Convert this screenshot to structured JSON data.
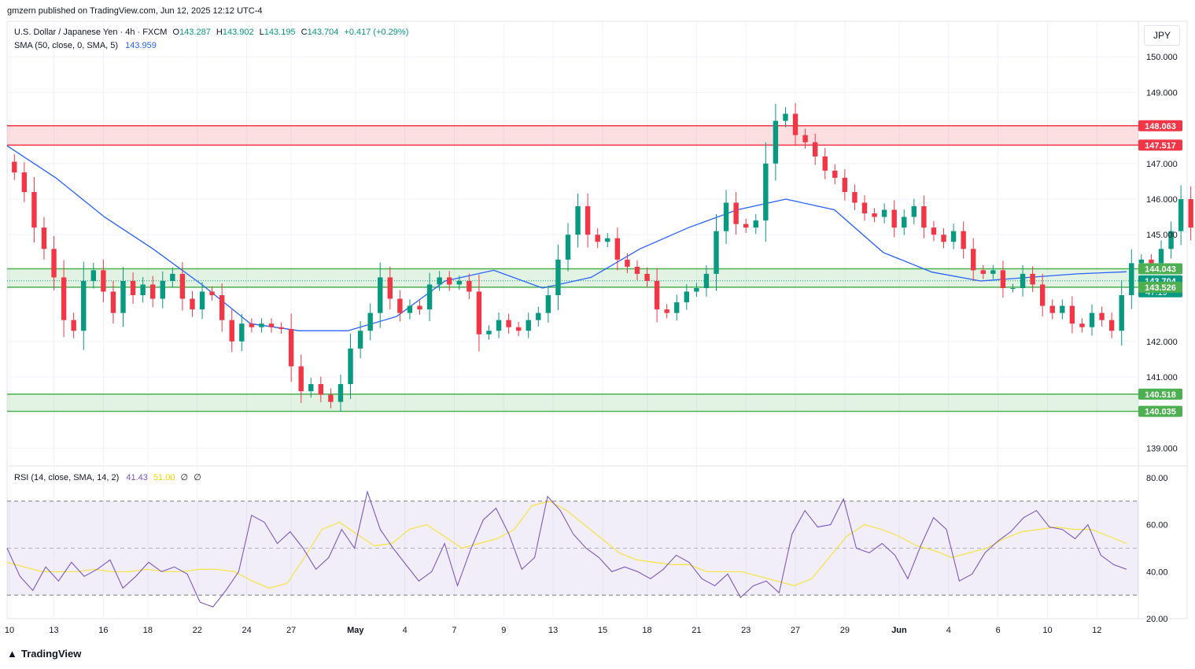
{
  "header": {
    "published": "gmzern published on TradingView.com, Jun 12, 2025 12:12 UTC-4"
  },
  "legend": {
    "symbol": "U.S. Dollar / Japanese Yen · 4h · FXCM",
    "o_label": "O",
    "o_value": "143.287",
    "h_label": "H",
    "h_value": "143.902",
    "l_label": "L",
    "l_value": "143.195",
    "c_label": "C",
    "c_value": "143.704",
    "change": "+0.417 (+0.29%)",
    "sma_label": "SMA (50, close, 0, SMA, 5)",
    "sma_value": "143.959"
  },
  "rsi_legend": {
    "label": "RSI (14, close, SMA, 14, 2)",
    "rsi_value": "41.43",
    "rsi_ma_value": "51.00",
    "extra1": "∅",
    "extra2": "∅"
  },
  "currency_button": "JPY",
  "footer": {
    "brand": "TradingView"
  },
  "colors": {
    "up": "#089981",
    "down": "#f23645",
    "sma": "#2962ff",
    "rsi": "#7e57c2",
    "rsi_ma": "#f5e342",
    "red_zone": "#f23645",
    "green_zone": "#4caf50"
  },
  "chart_data": {
    "type": "candlestick",
    "symbol": "USDJPY",
    "timeframe": "4h",
    "price_axis": {
      "range": [
        138.5,
        151.0
      ],
      "ticks": [
        "150.000",
        "149.000",
        "147.000",
        "146.000",
        "145.000",
        "142.000",
        "141.000",
        "139.000"
      ]
    },
    "price_labels": [
      {
        "value": 148.063,
        "text": "148.063",
        "kind": "red"
      },
      {
        "value": 147.517,
        "text": "147.517",
        "kind": "red"
      },
      {
        "value": 144.043,
        "text": "144.043",
        "kind": "green"
      },
      {
        "value": 143.704,
        "text": "143.704",
        "kind": "last",
        "countdown": "47:19"
      },
      {
        "value": 143.526,
        "text": "143.526",
        "kind": "green"
      },
      {
        "value": 140.518,
        "text": "140.518",
        "kind": "green"
      },
      {
        "value": 140.035,
        "text": "140.035",
        "kind": "green"
      }
    ],
    "zones": [
      {
        "name": "resistance",
        "from": 147.517,
        "to": 148.063,
        "kind": "red"
      },
      {
        "name": "pivot",
        "from": 143.526,
        "to": 144.043,
        "kind": "green"
      },
      {
        "name": "support",
        "from": 140.035,
        "to": 140.518,
        "kind": "green"
      }
    ],
    "time_axis": {
      "labels": [
        "10",
        "13",
        "16",
        "18",
        "22",
        "24",
        "27",
        "May",
        "4",
        "7",
        "9",
        "13",
        "15",
        "18",
        "21",
        "23",
        "27",
        "29",
        "Jun",
        "4",
        "6",
        "10",
        "12"
      ],
      "label_positions": [
        0,
        4.5,
        9.5,
        14,
        19,
        24,
        28.5,
        35,
        40,
        45,
        50,
        55,
        60,
        64.5,
        69.5,
        74.5,
        79.5,
        84.5,
        90,
        95,
        100,
        105,
        110
      ]
    },
    "close": [
      146.75,
      146.2,
      145.2,
      144.6,
      143.8,
      142.6,
      142.3,
      143.7,
      144.0,
      143.4,
      142.8,
      143.7,
      143.3,
      143.6,
      143.2,
      143.7,
      143.9,
      143.2,
      142.9,
      143.4,
      143.3,
      142.6,
      142.0,
      142.5,
      142.4,
      142.5,
      142.4,
      142.35,
      141.3,
      140.6,
      140.8,
      140.5,
      140.3,
      140.8,
      141.8,
      142.3,
      142.8,
      143.8,
      143.2,
      142.8,
      143.0,
      142.9,
      143.6,
      143.8,
      143.6,
      143.7,
      143.4,
      142.2,
      142.3,
      142.6,
      142.4,
      142.3,
      142.6,
      142.8,
      143.3,
      144.3,
      145.0,
      145.8,
      145.0,
      144.8,
      144.9,
      144.3,
      144.1,
      143.9,
      143.7,
      142.9,
      142.8,
      143.1,
      143.4,
      143.5,
      143.9,
      145.1,
      145.9,
      145.3,
      145.2,
      145.4,
      147.0,
      148.2,
      148.4,
      147.8,
      147.6,
      147.2,
      146.8,
      146.6,
      146.2,
      145.9,
      145.6,
      145.5,
      145.7,
      145.2,
      145.5,
      145.8,
      145.2,
      145.0,
      144.8,
      145.1,
      144.6,
      144.0,
      143.9,
      144.0,
      143.5,
      143.5,
      143.9,
      143.6,
      143.0,
      142.8,
      143.0,
      142.5,
      142.4,
      142.8,
      142.6,
      142.3,
      143.3,
      144.2,
      144.3,
      144.2,
      144.6,
      145.1,
      146.0,
      145.2,
      144.5,
      144.0,
      143.9,
      143.8,
      143.8,
      143.4,
      143.0,
      142.8,
      142.7,
      143.0,
      143.6,
      144.0,
      143.8,
      143.5,
      142.7,
      142.8,
      143.1,
      143.6,
      143.8,
      144.3,
      145.0,
      144.5,
      144.3,
      144.5,
      144.7,
      144.6,
      145.0,
      144.9,
      145.1,
      144.7,
      144.3,
      144.0,
      143.5,
      143.704
    ],
    "sma50_samples": [
      147.5,
      146.6,
      145.5,
      144.6,
      143.6,
      142.5,
      142.3,
      142.3,
      142.7,
      143.7,
      144.0,
      143.5,
      143.8,
      144.6,
      145.2,
      145.7,
      146.0,
      145.7,
      144.5,
      143.95,
      143.7,
      143.8,
      143.9,
      143.959
    ],
    "rsi_axis": {
      "range": [
        20,
        85
      ],
      "ticks": [
        "80.00",
        "60.00",
        "40.00",
        "20.00"
      ],
      "levels": [
        70,
        50,
        30
      ]
    },
    "rsi": [
      50,
      38,
      32,
      42,
      36,
      44,
      38,
      41,
      45,
      33,
      38,
      44,
      40,
      42,
      39,
      27,
      25,
      32,
      40,
      64,
      61,
      52,
      57,
      50,
      41,
      46,
      58,
      50,
      74,
      58,
      50,
      43,
      36,
      40,
      52,
      34,
      49,
      62,
      67,
      56,
      41,
      46,
      72,
      66,
      56,
      50,
      46,
      40,
      42,
      40,
      37,
      41,
      47,
      44,
      37,
      34,
      39,
      29,
      34,
      36,
      31,
      56,
      66,
      59,
      60,
      71,
      50,
      48,
      52,
      47,
      37,
      51,
      63,
      58,
      36,
      39,
      48,
      53,
      57,
      63,
      66,
      59,
      58,
      54,
      60,
      47,
      43,
      41
    ],
    "rsi_ma": [
      44,
      42,
      40,
      40,
      40,
      41,
      40,
      40,
      41,
      40,
      40,
      41,
      41,
      40,
      36,
      33,
      35,
      46,
      58,
      61,
      56,
      51,
      52,
      58,
      60,
      55,
      50,
      52,
      54,
      58,
      68,
      70,
      66,
      60,
      54,
      48,
      45,
      44,
      43,
      43,
      40,
      40,
      40,
      38,
      36,
      34,
      37,
      46,
      55,
      60,
      58,
      55,
      51,
      49,
      46,
      48,
      50,
      54,
      57,
      58,
      59,
      58,
      58,
      55,
      52
    ]
  }
}
